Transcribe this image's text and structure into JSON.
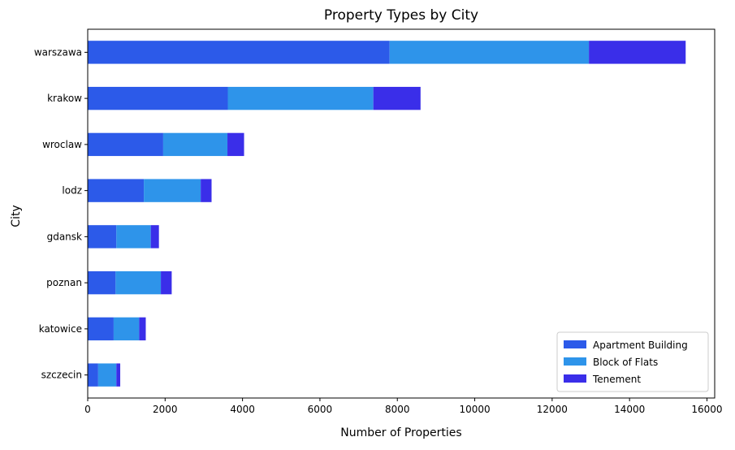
{
  "chart_data": {
    "type": "bar",
    "orientation": "horizontal",
    "stacked": true,
    "title": "Property Types by City",
    "xlabel": "Number of Properties",
    "ylabel": "City",
    "xlim": [
      0,
      16200
    ],
    "xticks": [
      0,
      2000,
      4000,
      6000,
      8000,
      10000,
      12000,
      14000,
      16000
    ],
    "grid": false,
    "legend_position": "bottom-right",
    "categories": [
      "warszawa",
      "krakow",
      "wroclaw",
      "lodz",
      "gdansk",
      "poznan",
      "katowice",
      "szczecin"
    ],
    "series": [
      {
        "name": "Apartment Building",
        "color": "#2c5ae9",
        "values": [
          7800,
          3620,
          1950,
          1450,
          740,
          720,
          670,
          270
        ]
      },
      {
        "name": "Block of Flats",
        "color": "#2e94ea",
        "values": [
          5150,
          3760,
          1660,
          1470,
          890,
          1170,
          660,
          470
        ]
      },
      {
        "name": "Tenement",
        "color": "#3a2ee9",
        "values": [
          2500,
          1220,
          430,
          280,
          210,
          280,
          170,
          100
        ]
      }
    ]
  }
}
